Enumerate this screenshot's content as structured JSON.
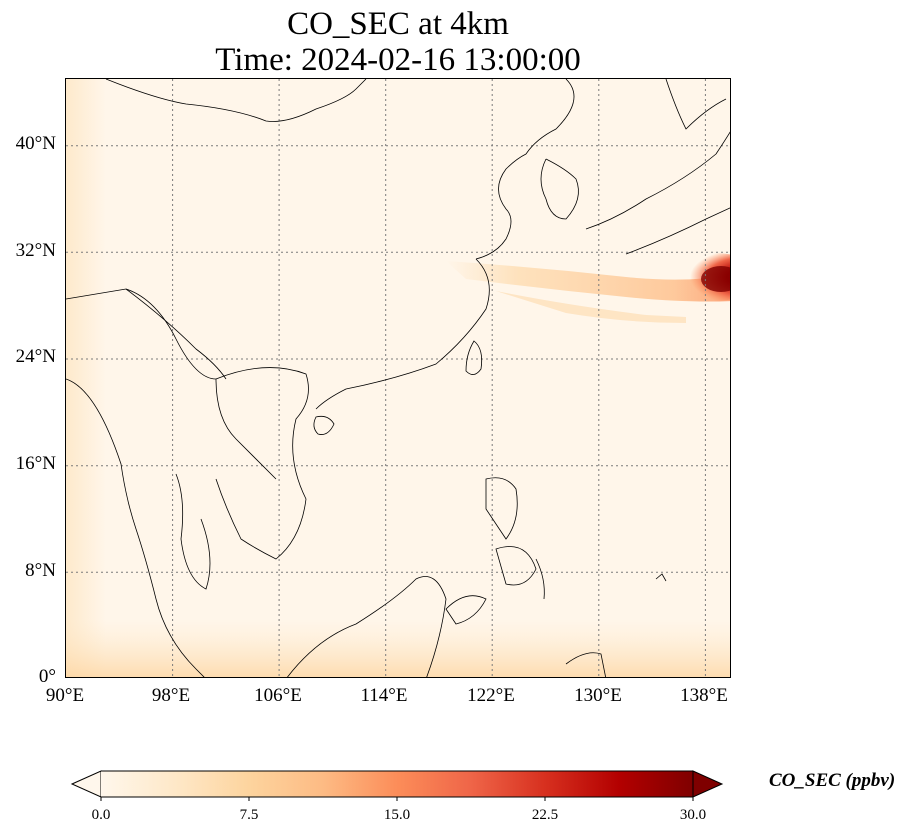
{
  "title": {
    "line1": "CO_SEC at 4km",
    "line2": "Time: 2024-02-16 13:00:00"
  },
  "map": {
    "extent": {
      "lon": [
        90,
        140
      ],
      "lat": [
        0,
        45
      ]
    },
    "lon_ticks": [
      "90°E",
      "98°E",
      "106°E",
      "114°E",
      "122°E",
      "130°E",
      "138°E"
    ],
    "lat_ticks": [
      "0°",
      "8°N",
      "16°N",
      "24°N",
      "32°N",
      "40°N"
    ],
    "gridlines": true,
    "colormap": "OrRd"
  },
  "colorbar": {
    "label": "CO_SEC (ppbv)",
    "ticks": [
      "0.0",
      "7.5",
      "15.0",
      "22.5",
      "30.0"
    ],
    "range": [
      0,
      30
    ],
    "extend": "both",
    "colors": [
      "#fff7ec",
      "#fee8c8",
      "#fdd49e",
      "#fdbb84",
      "#fc8d59",
      "#ef6548",
      "#d7301f",
      "#b30000",
      "#7f0000"
    ]
  }
}
